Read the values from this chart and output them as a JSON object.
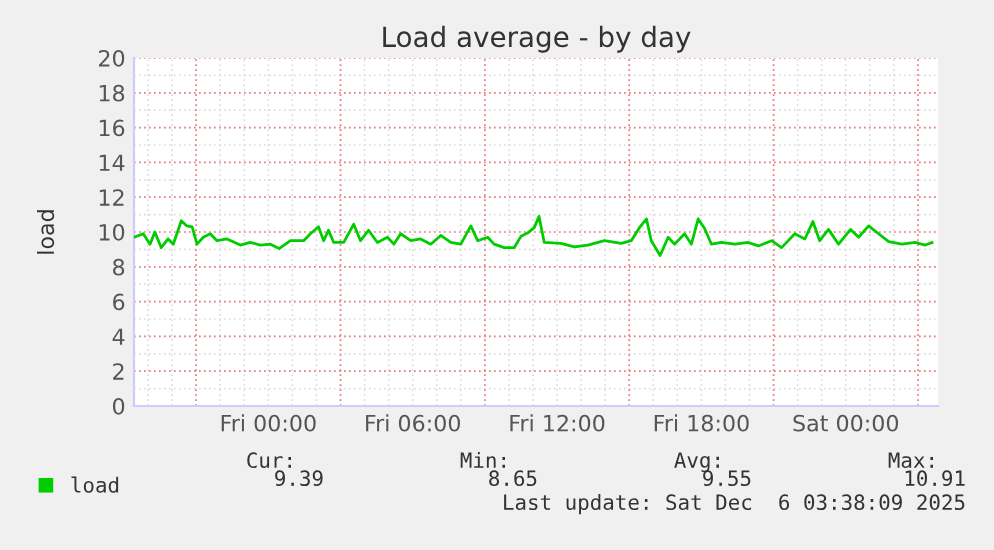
{
  "chart_data": {
    "type": "line",
    "title": "Load average - by day",
    "ylabel": "load",
    "xlim": [
      "2025-12-04T18:25",
      "2025-12-06T03:50"
    ],
    "xticks": [
      {
        "value": "2025-12-05T00:00",
        "label": "Fri 00:00"
      },
      {
        "value": "2025-12-05T06:00",
        "label": "Fri 06:00"
      },
      {
        "value": "2025-12-05T12:00",
        "label": "Fri 12:00"
      },
      {
        "value": "2025-12-05T18:00",
        "label": "Fri 18:00"
      },
      {
        "value": "2025-12-06T00:00",
        "label": "Sat 00:00"
      }
    ],
    "ylim": [
      0,
      20
    ],
    "yticks": [
      0,
      2,
      4,
      6,
      8,
      10,
      12,
      14,
      16,
      18,
      20
    ],
    "grid": true,
    "legend": "bottom",
    "marker": "none",
    "line_style": "solid",
    "x": [
      "2025-12-04T18:25",
      "2025-12-04T18:48",
      "2025-12-04T19:05",
      "2025-12-04T19:17",
      "2025-12-04T19:33",
      "2025-12-04T19:50",
      "2025-12-04T20:03",
      "2025-12-04T20:23",
      "2025-12-04T20:37",
      "2025-12-04T20:50",
      "2025-12-04T21:02",
      "2025-12-04T21:18",
      "2025-12-04T21:35",
      "2025-12-04T21:52",
      "2025-12-04T22:17",
      "2025-12-04T22:50",
      "2025-12-04T23:15",
      "2025-12-04T23:40",
      "2025-12-05T00:05",
      "2025-12-05T00:27",
      "2025-12-05T00:55",
      "2025-12-05T01:28",
      "2025-12-05T01:45",
      "2025-12-05T02:05",
      "2025-12-05T02:18",
      "2025-12-05T02:30",
      "2025-12-05T02:43",
      "2025-12-05T03:08",
      "2025-12-05T03:33",
      "2025-12-05T03:50",
      "2025-12-05T04:10",
      "2025-12-05T04:32",
      "2025-12-05T04:57",
      "2025-12-05T05:13",
      "2025-12-05T05:30",
      "2025-12-05T05:55",
      "2025-12-05T06:20",
      "2025-12-05T06:45",
      "2025-12-05T07:10",
      "2025-12-05T07:35",
      "2025-12-05T08:00",
      "2025-12-05T08:25",
      "2025-12-05T08:42",
      "2025-12-05T09:07",
      "2025-12-05T09:23",
      "2025-12-05T09:48",
      "2025-12-05T10:13",
      "2025-12-05T10:30",
      "2025-12-05T10:47",
      "2025-12-05T11:03",
      "2025-12-05T11:15",
      "2025-12-05T11:28",
      "2025-12-05T12:10",
      "2025-12-05T12:43",
      "2025-12-05T13:17",
      "2025-12-05T13:58",
      "2025-12-05T14:40",
      "2025-12-05T15:05",
      "2025-12-05T15:27",
      "2025-12-05T15:43",
      "2025-12-05T15:55",
      "2025-12-05T16:17",
      "2025-12-05T16:37",
      "2025-12-05T16:53",
      "2025-12-05T17:18",
      "2025-12-05T17:35",
      "2025-12-05T17:52",
      "2025-12-05T18:08",
      "2025-12-05T18:25",
      "2025-12-05T18:50",
      "2025-12-05T19:23",
      "2025-12-05T19:57",
      "2025-12-05T20:22",
      "2025-12-05T20:55",
      "2025-12-05T21:20",
      "2025-12-05T21:53",
      "2025-12-05T22:18",
      "2025-12-05T22:38",
      "2025-12-05T22:55",
      "2025-12-05T23:17",
      "2025-12-05T23:42",
      "2025-12-06T00:12",
      "2025-12-06T00:32",
      "2025-12-06T00:57",
      "2025-12-06T01:22",
      "2025-12-06T01:47",
      "2025-12-06T02:20",
      "2025-12-06T02:53",
      "2025-12-06T03:18",
      "2025-12-06T03:35"
    ],
    "series": [
      {
        "name": "load",
        "color": "#00cc00",
        "values": [
          9.7,
          9.9,
          9.3,
          10.0,
          9.1,
          9.6,
          9.3,
          10.65,
          10.35,
          10.3,
          9.3,
          9.7,
          9.9,
          9.5,
          9.6,
          9.25,
          9.4,
          9.25,
          9.3,
          9.05,
          9.5,
          9.5,
          9.9,
          10.3,
          9.5,
          10.1,
          9.4,
          9.4,
          10.45,
          9.5,
          10.1,
          9.4,
          9.7,
          9.3,
          9.9,
          9.5,
          9.6,
          9.3,
          9.8,
          9.4,
          9.3,
          10.35,
          9.5,
          9.7,
          9.3,
          9.1,
          9.1,
          9.75,
          9.95,
          10.25,
          10.9,
          9.4,
          9.35,
          9.15,
          9.25,
          9.5,
          9.35,
          9.5,
          10.3,
          10.75,
          9.5,
          8.65,
          9.7,
          9.3,
          9.9,
          9.3,
          10.75,
          10.2,
          9.3,
          9.4,
          9.3,
          9.4,
          9.2,
          9.5,
          9.1,
          9.9,
          9.6,
          10.6,
          9.5,
          10.15,
          9.3,
          10.15,
          9.7,
          10.35,
          9.9,
          9.45,
          9.3,
          9.4,
          9.25,
          9.39
        ]
      }
    ],
    "annotations": [
      "Cur:",
      "9.39",
      "Min:",
      "8.65",
      "Avg:",
      "9.55",
      "Max:",
      "10.91",
      "Last update: Sat Dec  6 03:38:09 2025"
    ]
  }
}
